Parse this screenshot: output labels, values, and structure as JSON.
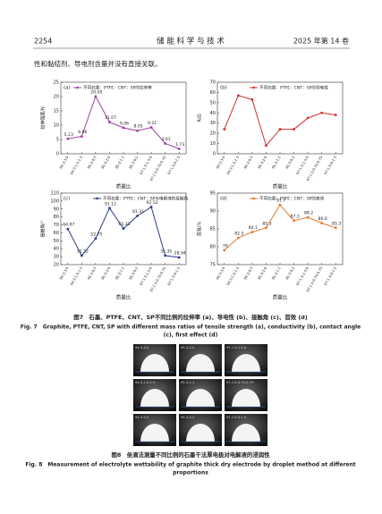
{
  "header": {
    "page": "2254",
    "journal": "储 能 科 学 与 技 术",
    "volume": "2025 年第 14 卷"
  },
  "body_text": "性和黏结剂、导电剂含量并没有直接关联。",
  "chart_data": [
    {
      "type": "line",
      "panel": "(a)",
      "xlabel": "质量比",
      "ylabel": "拉伸强度/N",
      "categories": [
        "94:3:3:0",
        "94:3:1.5:1.5",
        "94:3:0:3",
        "95:3:2:0",
        "95:3:1:1",
        "95:3:0:2",
        "97:1.5:1.5:0",
        "97:1.5:0.75:0.75",
        "97:1.5:0:1.5"
      ],
      "series": [
        {
          "name": "不同石墨：PTFE：CNT：SP的拉伸率",
          "color": "#9b3fa0",
          "values": [
            5.23,
            6.06,
            20.05,
            11.07,
            9.06,
            8.05,
            9.21,
            3.61,
            1.73
          ]
        }
      ],
      "ylim": [
        0,
        25
      ],
      "yticks": [
        0,
        5,
        10,
        15,
        20,
        25
      ],
      "legend": "upper left",
      "data_labels": true
    },
    {
      "type": "line",
      "panel": "(b)",
      "xlabel": "质量比",
      "ylabel": "R/Ω",
      "categories": [
        "94:3:3:0",
        "94:3:1.5:1.5",
        "94:3:0:3",
        "95:3:2:0",
        "95:3:1:1",
        "95:3:0:2",
        "97:1.5:1.5:0",
        "97:1.5:0.75:0.75",
        "97:1.5:0:1.5"
      ],
      "series": [
        {
          "name": "不同石墨：PTFE：CNT：SP的导电性",
          "color": "#d03030",
          "values": [
            24,
            57,
            53,
            8,
            24,
            24,
            35,
            40,
            38
          ]
        }
      ],
      "ylim": [
        0,
        70
      ],
      "yticks": [
        0,
        10,
        20,
        30,
        40,
        50,
        60,
        70
      ],
      "legend": "upper right",
      "data_labels": false
    },
    {
      "type": "line",
      "panel": "(c)",
      "xlabel": "质量比",
      "ylabel": "接触角/°",
      "categories": [
        "94:3:3:0",
        "94:3:1.5:1.5",
        "94:3:0:3",
        "95:3:2:0",
        "95:3:1:1",
        "95:3:0:2",
        "97:1.5:1.5:0",
        "97:1.5:0.75:0.75",
        "97:1.5:0:1.5"
      ],
      "series": [
        {
          "name": "不同石墨：PTFE：CNT：SP与电解液的接触角",
          "color": "#2a3c8c",
          "values": [
            64.87,
            31.32,
            52.75,
            91.12,
            65.33,
            81.31,
            92.52,
            31.35,
            28.94
          ]
        }
      ],
      "ylim": [
        20,
        110
      ],
      "yticks": [
        20,
        30,
        40,
        50,
        60,
        70,
        80,
        90,
        100,
        110
      ],
      "legend": "upper right",
      "data_labels": true
    },
    {
      "type": "line",
      "panel": "(d)",
      "xlabel": "质量比",
      "ylabel": "首效/%",
      "categories": [
        "94:3:3:0",
        "94:3:1.5:1.5",
        "94:3:0:3",
        "95:3:2:0",
        "95:3:1:1",
        "95:3:0:2",
        "97:1.5:1.5:0",
        "97:1.5:0.75:0.75",
        "97:1.5:0:1.5"
      ],
      "series": [
        {
          "name": "不同石墨：PTFE：CNT：SP的首效",
          "color": "#e07a30",
          "values": [
            79,
            82.5,
            84.1,
            85.3,
            91.7,
            87.3,
            88.2,
            86.6,
            85.3
          ]
        }
      ],
      "ylim": [
        75,
        95
      ],
      "yticks": [
        75,
        80,
        85,
        90,
        95
      ],
      "legend": "upper right",
      "data_labels": true
    }
  ],
  "figure7": {
    "caption_cn": "图7　石墨、PTFE、CNT、SP不同比例的拉伸率 (a)、导电性 (b)、接触角 (c)、首效 (d)",
    "caption_en": [
      "Fig. 7　Graphite, PTFE, CNT, SP with different mass ratios of tensile strength (a), conductivity (b), contact angle",
      "(c), first effect (d)"
    ]
  },
  "figure8": {
    "panels": [
      "94-3-3-0",
      "95-3-2-0",
      "97-1.5-1.5-0",
      "94-3-1.5-1.5",
      "95-3-1-1",
      "97-1.5-0.75-0.75",
      "94-3-0-3",
      "95-3-0-2",
      "97-1.5-0-1.5"
    ],
    "caption_cn": "图8　坐滴法测量不同比例的石墨干法厚电极对电解液的浸润性",
    "caption_en": [
      "Fig. 8　Measurement of electrolyte wettability of graphite thick dry electrode by droplet method at different",
      "proportions"
    ]
  }
}
